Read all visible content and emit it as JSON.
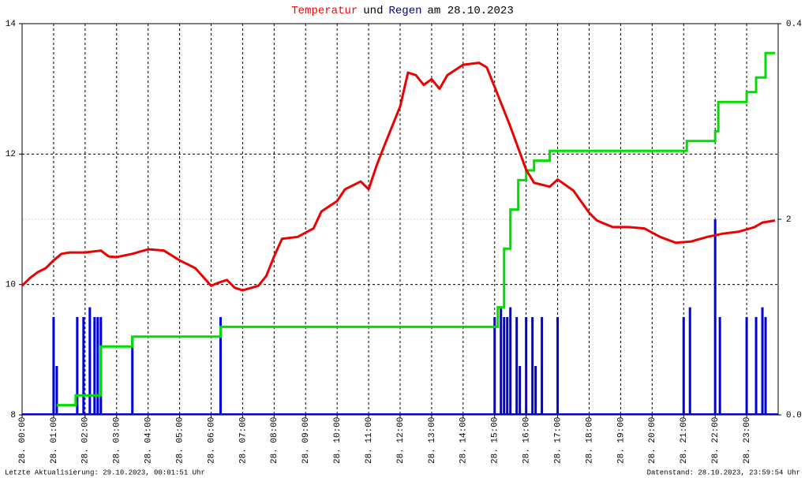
{
  "chart_data": {
    "type": "line",
    "title_parts": [
      {
        "text": "Temperatur",
        "color": "#ff0000"
      },
      {
        "text": "und",
        "color": "#000000"
      },
      {
        "text": "Regen",
        "color": "#000080"
      },
      {
        "text": "am 28.10.2023",
        "color": "#000000"
      }
    ],
    "footer_left": "Letzte Aktualisierung: 29.10.2023, 00:01:51 Uhr",
    "footer_right": "Datenstand: 28.10.2023, 23:59:54 Uhr",
    "xlim": [
      0,
      24
    ],
    "xticks": [
      {
        "value": 0,
        "label": "28. 00:00"
      },
      {
        "value": 1,
        "label": "28. 01:00"
      },
      {
        "value": 2,
        "label": "28. 02:00"
      },
      {
        "value": 3,
        "label": "28. 03:00"
      },
      {
        "value": 4,
        "label": "28. 04:00"
      },
      {
        "value": 5,
        "label": "28. 05:00"
      },
      {
        "value": 6,
        "label": "28. 06:00"
      },
      {
        "value": 7,
        "label": "28. 07:00"
      },
      {
        "value": 8,
        "label": "28. 08:00"
      },
      {
        "value": 9,
        "label": "28. 09:00"
      },
      {
        "value": 10,
        "label": "28. 10:00"
      },
      {
        "value": 11,
        "label": "28. 11:00"
      },
      {
        "value": 12,
        "label": "28. 12:00"
      },
      {
        "value": 13,
        "label": "28. 13:00"
      },
      {
        "value": 14,
        "label": "28. 14:00"
      },
      {
        "value": 15,
        "label": "28. 15:00"
      },
      {
        "value": 16,
        "label": "28. 16:00"
      },
      {
        "value": 17,
        "label": "28. 17:00"
      },
      {
        "value": 18,
        "label": "28. 18:00"
      },
      {
        "value": 19,
        "label": "28. 19:00"
      },
      {
        "value": 20,
        "label": "28. 20:00"
      },
      {
        "value": 21,
        "label": "28. 21:00"
      },
      {
        "value": 22,
        "label": "28. 22:00"
      },
      {
        "value": 23,
        "label": "28. 23:00"
      }
    ],
    "ylim": [
      8,
      14
    ],
    "yticks": [
      8,
      10,
      12,
      14
    ],
    "y2lim": [
      0,
      0.4
    ],
    "y2ticks": [
      {
        "value": 0,
        "label": "0.0"
      },
      {
        "value": 0.2,
        "label": "2",
        "color": "#00dd00"
      },
      0.4
    ],
    "grid": true,
    "series": [
      {
        "style": "bar",
        "axis": "y2",
        "color": "#0000dd",
        "x": [
          1.0,
          1.1,
          1.75,
          1.95,
          2.15,
          2.3,
          2.4,
          2.5,
          3.5,
          6.3,
          15.0,
          15.2,
          15.3,
          15.4,
          15.5,
          15.7,
          15.8,
          16.0,
          16.2,
          16.3,
          16.5,
          17.0,
          21.0,
          21.2,
          22.0,
          22.15,
          23.0,
          23.3,
          23.5,
          23.6
        ],
        "values": [
          0.1,
          0.05,
          0.1,
          0.1,
          0.11,
          0.1,
          0.1,
          0.1,
          0.08,
          0.1,
          0.1,
          0.11,
          0.1,
          0.1,
          0.11,
          0.1,
          0.05,
          0.1,
          0.1,
          0.05,
          0.1,
          0.1,
          0.1,
          0.11,
          0.2,
          0.1,
          0.1,
          0.1,
          0.11,
          0.1
        ]
      },
      {
        "style": "step",
        "axis": "y2",
        "color": "#00dd00",
        "x": [
          1.1,
          1.7,
          2.5,
          3.5,
          6.3,
          15.1,
          15.3,
          15.5,
          15.75,
          16.0,
          16.25,
          16.75,
          21.1,
          22.0,
          22.1,
          23.0,
          23.3,
          23.6,
          23.9
        ],
        "values": [
          0.01,
          0.02,
          0.07,
          0.08,
          0.09,
          0.11,
          0.17,
          0.21,
          0.24,
          0.25,
          0.26,
          0.27,
          0.28,
          0.29,
          0.32,
          0.33,
          0.345,
          0.37,
          0.37
        ]
      },
      {
        "style": "line",
        "axis": "y",
        "color": "#ee0000",
        "x": [
          0,
          0.25,
          0.5,
          0.75,
          1.0,
          1.25,
          1.5,
          2.0,
          2.5,
          2.75,
          3.0,
          3.5,
          4.0,
          4.5,
          5.0,
          5.5,
          6.0,
          6.25,
          6.5,
          6.75,
          7.0,
          7.5,
          7.75,
          8.0,
          8.25,
          8.75,
          9.25,
          9.5,
          10.0,
          10.25,
          10.75,
          11.0,
          11.25,
          11.5,
          12.0,
          12.25,
          12.5,
          12.75,
          13.0,
          13.25,
          13.5,
          14.0,
          14.5,
          14.75,
          15.0,
          15.5,
          16.0,
          16.25,
          16.75,
          17.0,
          17.5,
          18.0,
          18.25,
          18.75,
          19.25,
          19.75,
          20.25,
          20.75,
          21.25,
          21.75,
          22.25,
          22.75,
          23.25,
          23.5,
          23.9
        ],
        "values": [
          9.98,
          10.1,
          10.19,
          10.25,
          10.37,
          10.47,
          10.49,
          10.49,
          10.52,
          10.43,
          10.42,
          10.47,
          10.54,
          10.52,
          10.37,
          10.25,
          9.98,
          10.03,
          10.07,
          9.95,
          9.91,
          9.98,
          10.13,
          10.43,
          10.7,
          10.73,
          10.86,
          11.12,
          11.28,
          11.46,
          11.58,
          11.46,
          11.82,
          12.13,
          12.73,
          13.25,
          13.21,
          13.06,
          13.15,
          13.0,
          13.21,
          13.37,
          13.4,
          13.33,
          13.03,
          12.42,
          11.76,
          11.56,
          11.5,
          11.61,
          11.44,
          11.1,
          10.98,
          10.88,
          10.88,
          10.86,
          10.73,
          10.64,
          10.66,
          10.73,
          10.78,
          10.81,
          10.88,
          10.95,
          10.98
        ]
      }
    ]
  }
}
